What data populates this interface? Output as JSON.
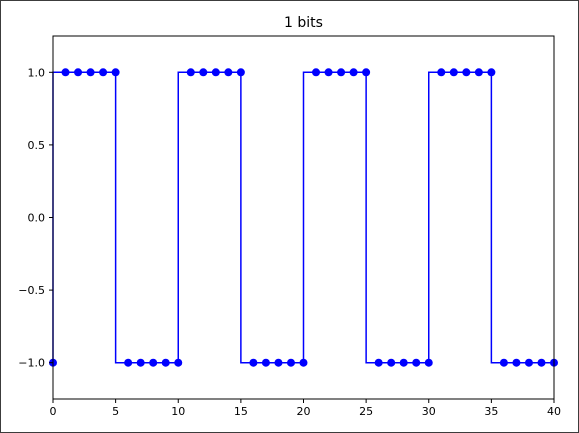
{
  "chart_data": {
    "type": "line",
    "title": "1 bits",
    "xlabel": "",
    "ylabel": "",
    "xlim": [
      0,
      40
    ],
    "ylim": [
      -1.25,
      1.25
    ],
    "grid": false,
    "legend": "none",
    "x_ticks": [
      0,
      5,
      10,
      15,
      20,
      25,
      30,
      35,
      40
    ],
    "x_tick_labels": [
      "0",
      "5",
      "10",
      "15",
      "20",
      "25",
      "30",
      "35",
      "40"
    ],
    "y_ticks": [
      1.0,
      0.5,
      0.0,
      -0.5,
      -1.0
    ],
    "y_tick_labels": [
      "1.0",
      "0.5",
      "0.0",
      "−0.5",
      "−1.0"
    ],
    "series": [
      {
        "color": "#0000ff",
        "drawstyle": "steps-pre",
        "marker": "circle",
        "x": [
          0,
          1,
          2,
          3,
          4,
          5,
          6,
          7,
          8,
          9,
          10,
          11,
          12,
          13,
          14,
          15,
          16,
          17,
          18,
          19,
          20,
          21,
          22,
          23,
          24,
          25,
          26,
          27,
          28,
          29,
          30,
          31,
          32,
          33,
          34,
          35,
          36,
          37,
          38,
          39,
          40
        ],
        "y": [
          -1,
          1,
          1,
          1,
          1,
          1,
          -1,
          -1,
          -1,
          -1,
          -1,
          1,
          1,
          1,
          1,
          1,
          -1,
          -1,
          -1,
          -1,
          -1,
          1,
          1,
          1,
          1,
          1,
          -1,
          -1,
          -1,
          -1,
          -1,
          1,
          1,
          1,
          1,
          1,
          -1,
          -1,
          -1,
          -1,
          -1
        ]
      }
    ]
  }
}
